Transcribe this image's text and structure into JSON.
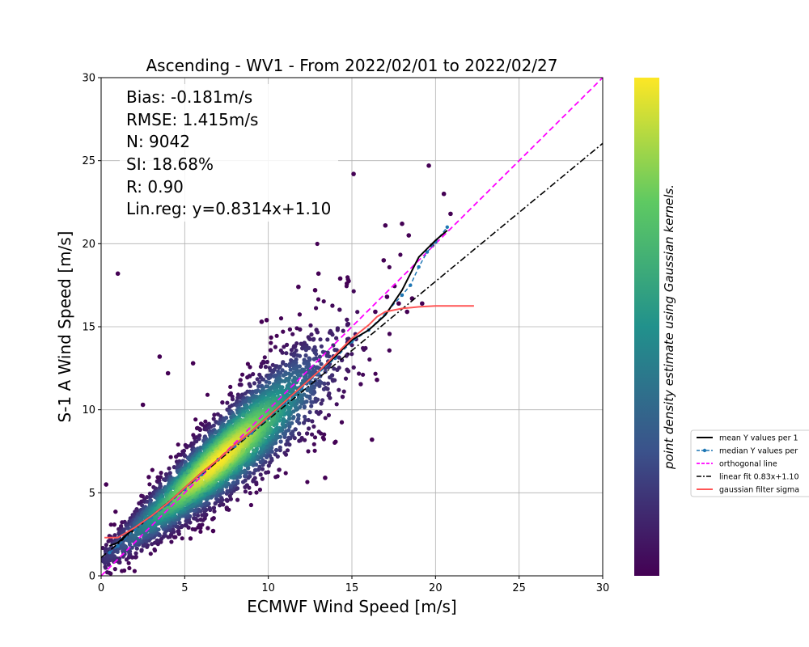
{
  "chart_data": {
    "type": "scatter",
    "title": "Ascending - WV1 - From 2022/02/01 to 2022/02/27",
    "xlabel": "ECMWF Wind Speed [m/s]",
    "ylabel": "S-1 A Wind Speed [m/s]",
    "xlim": [
      0,
      30
    ],
    "ylim": [
      0,
      30
    ],
    "xticks": [
      0,
      5,
      10,
      15,
      20,
      25,
      30
    ],
    "yticks": [
      0,
      5,
      10,
      15,
      20,
      25,
      30
    ],
    "grid": true,
    "colorbar": {
      "label": "point density estimate using Gaussian kernels.",
      "colormap": "viridis",
      "colors": [
        "#440154",
        "#3b528b",
        "#21918c",
        "#5ec962",
        "#fde725"
      ]
    },
    "stats": [
      "Bias: -0.181m/s",
      "RMSE: 1.415m/s",
      "N: 9042",
      "SI: 18.68%",
      "R: 0.90",
      "Lin.reg: y=0.8314x+1.10"
    ],
    "legend": {
      "placement": "outside-right",
      "entries": [
        {
          "label": "mean Y values per 1",
          "color": "#000000",
          "style": "solid"
        },
        {
          "label": "median Y values per",
          "color": "#1f77b4",
          "style": "dashed-marker"
        },
        {
          "label": "orthogonal line",
          "color": "#ff00ff",
          "style": "dashed"
        },
        {
          "label": "linear fit 0.83x+1.10",
          "color": "#000000",
          "style": "dashdot"
        },
        {
          "label": "gaussian filter sigma",
          "color": "#ff5555",
          "style": "solid"
        }
      ]
    },
    "series": [
      {
        "name": "mean Y values per 1",
        "color": "#000000",
        "x": [
          0.5,
          1,
          2,
          3,
          4,
          5,
          6,
          7,
          8,
          9,
          10,
          11,
          12,
          13,
          14,
          15,
          16,
          17,
          18,
          19,
          20,
          20.7
        ],
        "y": [
          1.8,
          2.0,
          2.9,
          3.6,
          4.4,
          5.3,
          6.2,
          7.0,
          7.9,
          8.7,
          9.6,
          10.5,
          11.4,
          12.3,
          13.2,
          14.2,
          14.8,
          15.7,
          17.2,
          19.2,
          20.2,
          20.8
        ]
      },
      {
        "name": "median Y values per",
        "color": "#1f77b4",
        "x": [
          0.5,
          1,
          2,
          3,
          4,
          5,
          6,
          7,
          8,
          9,
          10,
          11,
          12,
          13,
          14,
          15,
          16,
          17,
          18,
          18.5,
          19,
          19.5,
          20,
          20.7
        ],
        "y": [
          1.4,
          1.8,
          2.8,
          3.5,
          4.3,
          5.2,
          6.1,
          7.0,
          7.8,
          8.6,
          9.5,
          10.4,
          11.3,
          12.2,
          13.1,
          14.1,
          14.8,
          15.8,
          16.9,
          17.5,
          18.6,
          19.5,
          20.1,
          21.0
        ]
      },
      {
        "name": "orthogonal line",
        "color": "#ff00ff",
        "x": [
          0,
          30
        ],
        "y": [
          0,
          30
        ]
      },
      {
        "name": "linear fit 0.83x+1.10",
        "color": "#000000",
        "x": [
          0,
          30
        ],
        "y": [
          1.1,
          26.04
        ]
      },
      {
        "name": "gaussian filter sigma",
        "color": "#ff5555",
        "x": [
          0.2,
          1,
          2,
          3,
          4,
          5,
          6,
          7,
          8,
          9,
          10,
          11,
          12,
          13,
          14,
          15,
          16,
          16.5,
          17,
          18,
          19,
          20,
          21,
          22.3
        ],
        "y": [
          2.3,
          2.3,
          2.9,
          3.6,
          4.4,
          5.3,
          6.2,
          7.0,
          7.9,
          8.7,
          9.6,
          10.5,
          11.4,
          12.3,
          13.3,
          14.3,
          15.1,
          15.6,
          15.9,
          16.1,
          16.2,
          16.25,
          16.25,
          16.25
        ]
      }
    ],
    "outliers": {
      "x": [
        1.0,
        15.1,
        19.6,
        20.5,
        20.9,
        18.0,
        18.4,
        19.8,
        17.0,
        16.9,
        13.0,
        14.3,
        12.8,
        11.8,
        16.4,
        18.6,
        17.8,
        16.2,
        9.6,
        9.9,
        3.5,
        0.3,
        16.5,
        13.4,
        5.5,
        4.0,
        2.5,
        6.7,
        17.1,
        18.3,
        19.2,
        14.7
      ],
      "y": [
        18.2,
        24.2,
        24.7,
        23.0,
        21.8,
        21.2,
        20.5,
        19.9,
        21.1,
        19.0,
        18.2,
        17.9,
        17.2,
        17.4,
        15.9,
        16.7,
        16.4,
        8.2,
        15.3,
        15.4,
        13.2,
        5.5,
        11.8,
        5.9,
        12.8,
        12.2,
        10.3,
        2.7,
        16.8,
        15.9,
        16.4,
        17.6
      ]
    }
  }
}
